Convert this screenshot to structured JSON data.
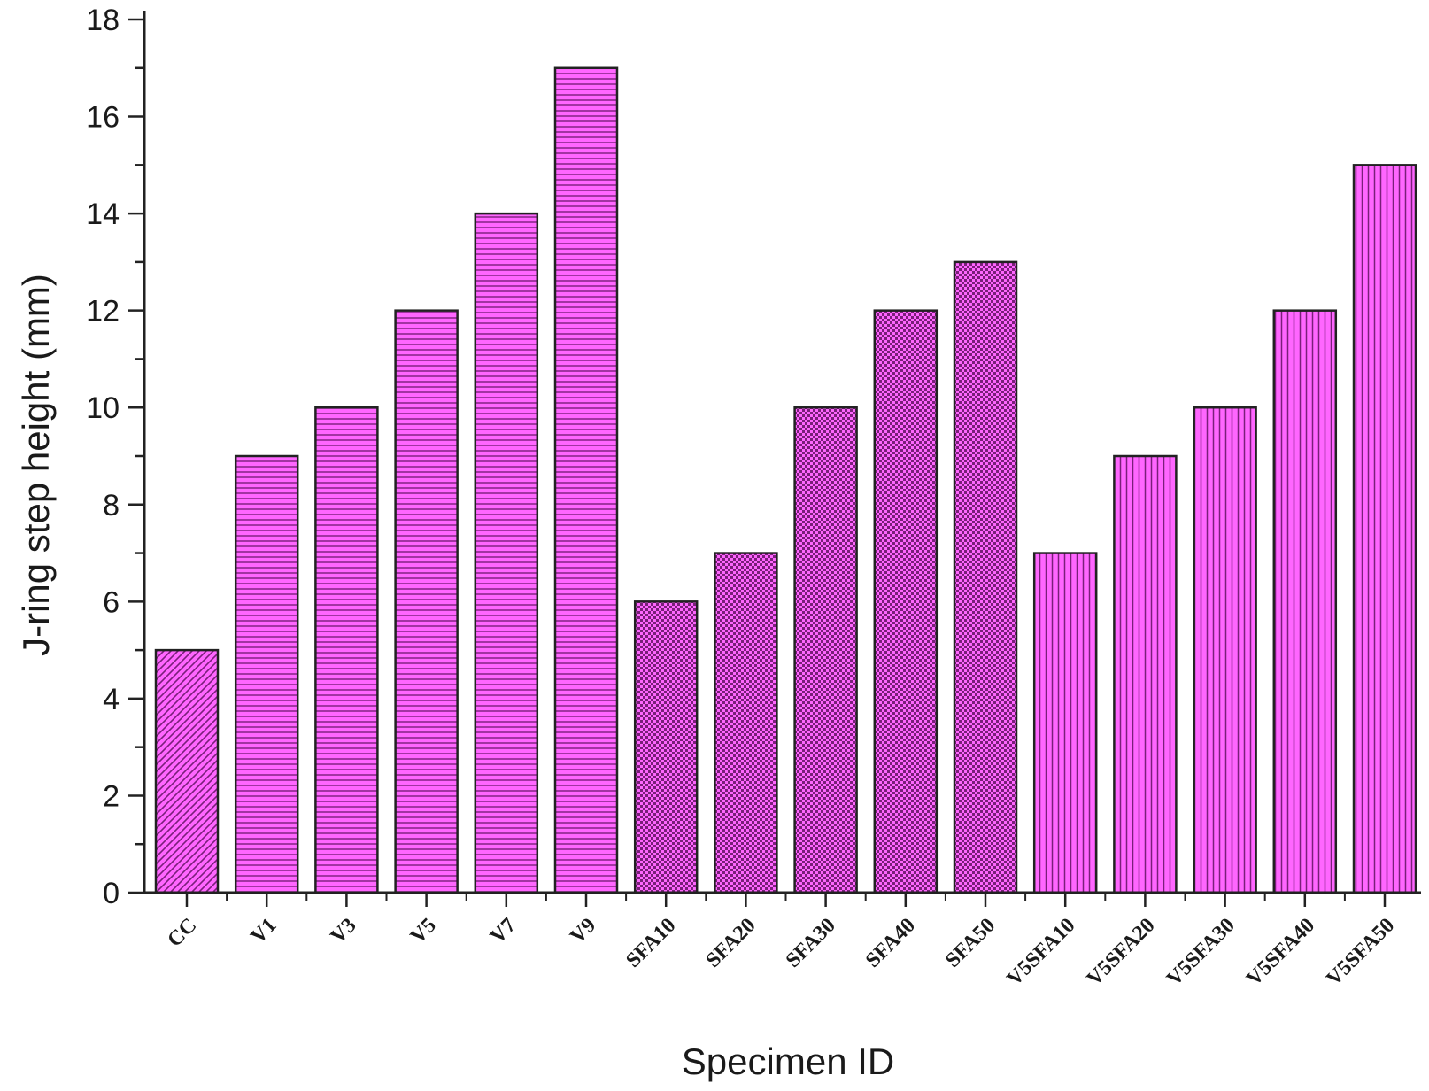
{
  "chart_data": {
    "type": "bar",
    "title": "",
    "xlabel": "Specimen ID",
    "ylabel": "J-ring step height (mm)",
    "ylim": [
      0,
      18
    ],
    "yticks": [
      0,
      2,
      4,
      6,
      8,
      10,
      12,
      14,
      16,
      18
    ],
    "grid": false,
    "legend": "none",
    "categories": [
      "CC",
      "V1",
      "V3",
      "V5",
      "V7",
      "V9",
      "SFA10",
      "SFA20",
      "SFA30",
      "SFA40",
      "SFA50",
      "V5SFA10",
      "V5SFA20",
      "V5SFA30",
      "V5SFA40",
      "V5SFA50"
    ],
    "values": [
      5,
      9,
      10,
      12,
      14,
      17,
      6,
      7,
      10,
      12,
      13,
      7,
      9,
      10,
      12,
      15
    ],
    "patterns": [
      "diagonal",
      "horizontal",
      "horizontal",
      "horizontal",
      "horizontal",
      "horizontal",
      "checker",
      "checker",
      "checker",
      "checker",
      "checker",
      "vertical",
      "vertical",
      "vertical",
      "vertical",
      "vertical"
    ],
    "colors": {
      "bar_fill": "#ff66ff",
      "pattern_line": "#7a1f7a",
      "bar_stroke": "#222222",
      "axis": "#222222"
    }
  }
}
